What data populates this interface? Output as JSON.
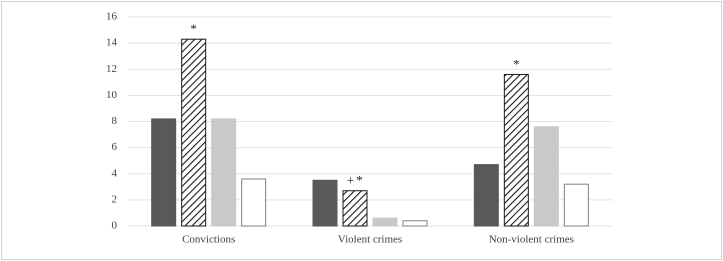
{
  "chart_data": {
    "type": "bar",
    "categories": [
      "Convictions",
      "Violent crimes",
      "Non-violent crimes"
    ],
    "series": [
      {
        "color": "#595959",
        "values": [
          8.2,
          3.5,
          4.7
        ]
      },
      {
        "color": "#000000",
        "hatch": true,
        "values": [
          14.3,
          2.7,
          11.6
        ]
      },
      {
        "color": "#c9c9c9",
        "values": [
          8.2,
          0.6,
          7.6
        ]
      },
      {
        "color": "#ffffff",
        "values": [
          3.6,
          0.4,
          3.2
        ]
      }
    ],
    "annotations": [
      {
        "text": "*",
        "category": 0,
        "series": 1
      },
      {
        "text": "+",
        "category": 1,
        "series": 1
      },
      {
        "text": "*",
        "category": 1,
        "series": 1
      },
      {
        "text": "*",
        "category": 2,
        "series": 1
      }
    ],
    "ylim": [
      0,
      16
    ],
    "yticks": [
      0,
      2,
      4,
      6,
      8,
      10,
      12,
      14,
      16
    ],
    "grid": true
  }
}
